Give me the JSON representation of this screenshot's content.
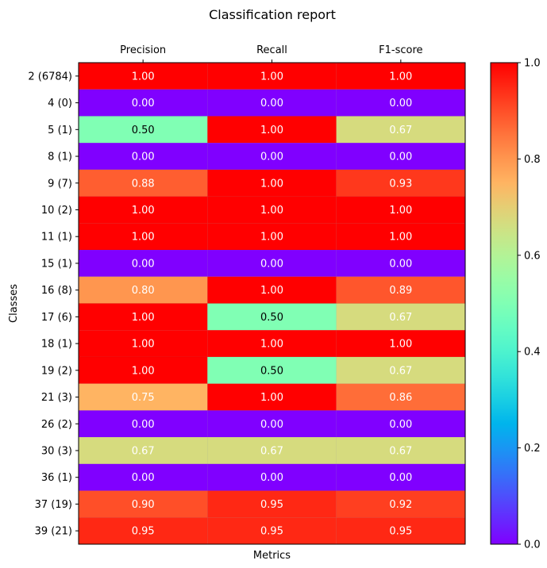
{
  "chart_data": {
    "type": "heatmap",
    "title": "Classification report",
    "xlabel": "Metrics",
    "ylabel": "Classes",
    "columns": [
      "Precision",
      "Recall",
      "F1-score"
    ],
    "rows": [
      "2 (6784)",
      "4 (0)",
      "5 (1)",
      "8 (1)",
      "9 (7)",
      "10 (2)",
      "11 (1)",
      "15 (1)",
      "16 (8)",
      "17 (6)",
      "18 (1)",
      "19 (2)",
      "21 (3)",
      "26 (2)",
      "30 (3)",
      "36 (1)",
      "37 (19)",
      "39 (21)"
    ],
    "values": [
      [
        1.0,
        1.0,
        1.0
      ],
      [
        0.0,
        0.0,
        0.0
      ],
      [
        0.5,
        1.0,
        0.67
      ],
      [
        0.0,
        0.0,
        0.0
      ],
      [
        0.88,
        1.0,
        0.93
      ],
      [
        1.0,
        1.0,
        1.0
      ],
      [
        1.0,
        1.0,
        1.0
      ],
      [
        0.0,
        0.0,
        0.0
      ],
      [
        0.8,
        1.0,
        0.89
      ],
      [
        1.0,
        0.5,
        0.67
      ],
      [
        1.0,
        1.0,
        1.0
      ],
      [
        1.0,
        0.5,
        0.67
      ],
      [
        0.75,
        1.0,
        0.86
      ],
      [
        0.0,
        0.0,
        0.0
      ],
      [
        0.67,
        0.67,
        0.67
      ],
      [
        0.0,
        0.0,
        0.0
      ],
      [
        0.9,
        0.95,
        0.92
      ],
      [
        0.95,
        0.95,
        0.95
      ]
    ],
    "value_format": "0.00",
    "colormap": "rainbow",
    "colorbar": {
      "min": 0.0,
      "max": 1.0,
      "ticks": [
        "0.0",
        "0.2",
        "0.4",
        "0.6",
        "0.8",
        "1.0"
      ]
    },
    "cell_alpha": 0.6
  }
}
